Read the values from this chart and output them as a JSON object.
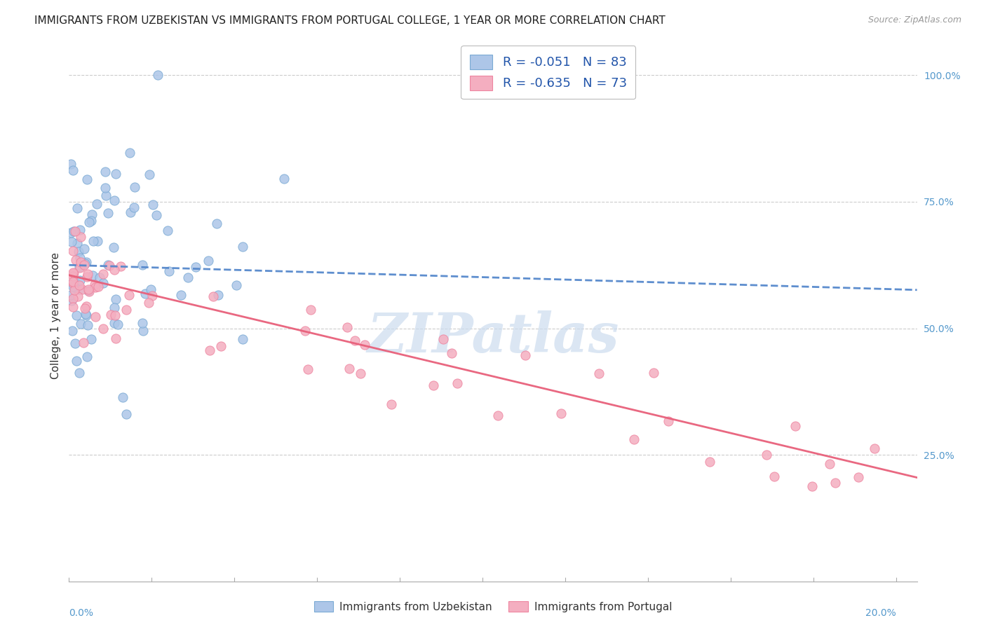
{
  "title": "IMMIGRANTS FROM UZBEKISTAN VS IMMIGRANTS FROM PORTUGAL COLLEGE, 1 YEAR OR MORE CORRELATION CHART",
  "source": "Source: ZipAtlas.com",
  "ylabel": "College, 1 year or more",
  "legend_uzbekistan": "Immigrants from Uzbekistan",
  "legend_portugal": "Immigrants from Portugal",
  "r_uzbekistan": "-0.051",
  "n_uzbekistan": "83",
  "r_portugal": "-0.635",
  "n_portugal": "73",
  "color_uzbekistan_fill": "#adc6e8",
  "color_uzbekistan_edge": "#7aaad4",
  "color_portugal_fill": "#f4aec0",
  "color_portugal_edge": "#ee85a0",
  "color_uzbekistan_line": "#5588cc",
  "color_portugal_line": "#e8607a",
  "background_color": "#ffffff",
  "grid_color": "#cccccc",
  "watermark_color": "#ccdcee",
  "xlim": [
    0.0,
    0.205
  ],
  "ylim": [
    0.0,
    1.05
  ],
  "figsize": [
    14.06,
    8.92
  ],
  "dpi": 100,
  "seed_uz": 42,
  "seed_pt": 77
}
